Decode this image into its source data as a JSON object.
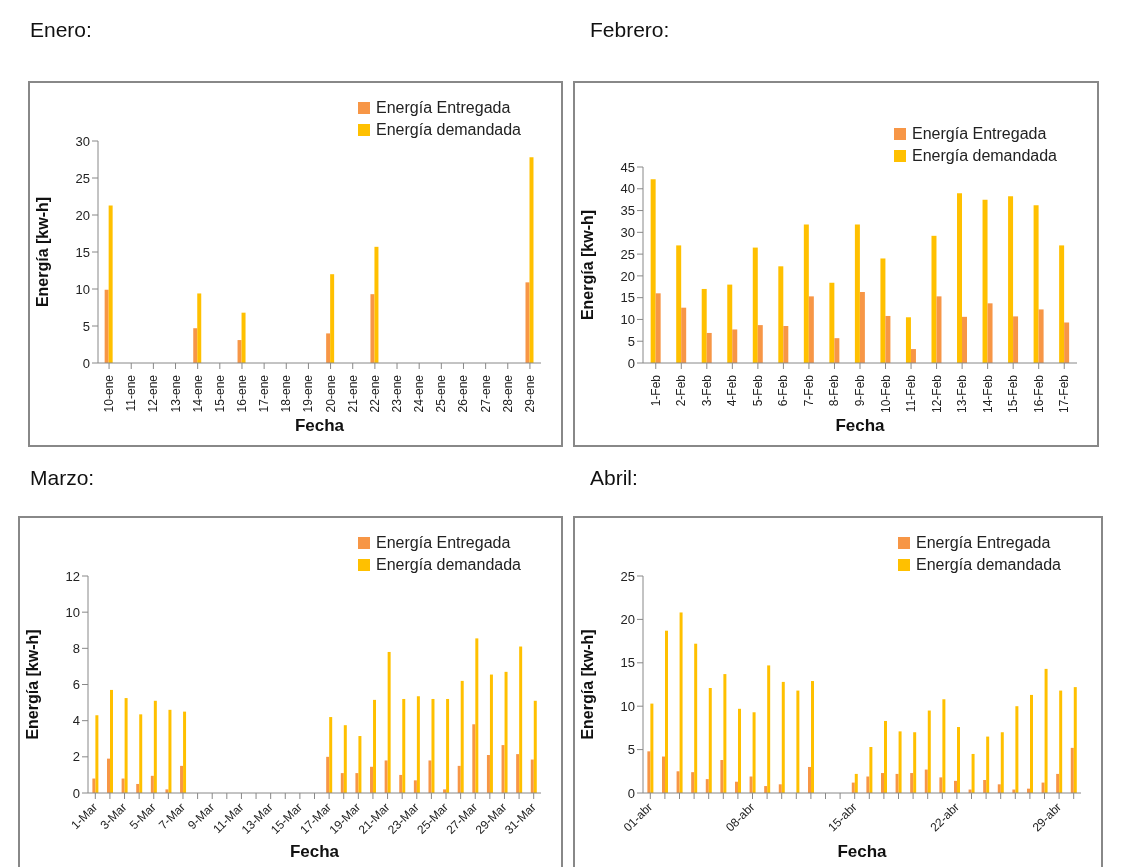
{
  "chart_data": [
    {
      "type": "bar",
      "title": "Enero:",
      "xlabel": "Fecha",
      "ylabel": "Energía [kw-h]",
      "legend": "top right",
      "categories": [
        "10-ene",
        "11-ene",
        "12-ene",
        "13-ene",
        "14-ene",
        "15-ene",
        "16-ene",
        "17-ene",
        "18-ene",
        "19-ene",
        "20-ene",
        "21-ene",
        "22-ene",
        "23-ene",
        "24-ene",
        "25-ene",
        "26-ene",
        "27-ene",
        "28-ene",
        "29-ene"
      ],
      "series": [
        {
          "name": "Energía Entregada",
          "color": "#f79646",
          "values": [
            9.9,
            null,
            null,
            null,
            4.7,
            null,
            3.1,
            null,
            null,
            null,
            4.0,
            null,
            9.3,
            null,
            null,
            null,
            null,
            null,
            null,
            10.9
          ]
        },
        {
          "name": "Energía demandada",
          "color": "#ffc000",
          "values": [
            21.3,
            null,
            null,
            null,
            9.4,
            null,
            6.8,
            null,
            null,
            null,
            12.0,
            null,
            15.7,
            null,
            null,
            null,
            null,
            null,
            null,
            27.8
          ]
        }
      ],
      "ylim": [
        0,
        30
      ],
      "yticks": [
        0,
        5,
        10,
        15,
        20,
        25,
        30
      ]
    },
    {
      "type": "bar",
      "title": "Febrero:",
      "xlabel": "Fecha",
      "ylabel": "Energía [kw-h]",
      "legend": "top right",
      "categories": [
        "1-Feb",
        "2-Feb",
        "3-Feb",
        "4-Feb",
        "5-Feb",
        "6-Feb",
        "7-Feb",
        "8-Feb",
        "9-Feb",
        "10-Feb",
        "11-Feb",
        "12-Feb",
        "13-Feb",
        "14-Feb",
        "15-Feb",
        "16-Feb",
        "17-Feb"
      ],
      "series": [
        {
          "name": "Energía demandada",
          "color": "#ffc000",
          "values": [
            42.2,
            27.0,
            17.0,
            18.0,
            26.5,
            22.2,
            31.8,
            18.4,
            31.8,
            24.0,
            10.5,
            29.2,
            39.0,
            37.5,
            38.3,
            36.2,
            27.0
          ]
        },
        {
          "name": "Energía Entregada",
          "color": "#f79646",
          "values": [
            16.0,
            12.7,
            6.9,
            7.7,
            8.7,
            8.5,
            15.3,
            5.7,
            16.3,
            10.8,
            3.2,
            15.3,
            10.6,
            13.7,
            10.7,
            12.3,
            9.3
          ]
        }
      ],
      "ylim": [
        0,
        45
      ],
      "yticks": [
        0,
        5,
        10,
        15,
        20,
        25,
        30,
        35,
        40,
        45
      ]
    },
    {
      "type": "bar",
      "title": "Marzo:",
      "xlabel": "Fecha",
      "ylabel": "Energía [kw-h]",
      "legend": "top right",
      "categories": [
        "1-Mar",
        null,
        "3-Mar",
        null,
        "5-Mar",
        null,
        "7-Mar",
        null,
        "9-Mar",
        null,
        "11-Mar",
        null,
        "13-Mar",
        null,
        "15-Mar",
        null,
        "17-Mar",
        null,
        "19-Mar",
        null,
        "21-Mar",
        null,
        "23-Mar",
        null,
        "25-Mar",
        null,
        "27-Mar",
        null,
        "29-Mar",
        null,
        "31-Mar"
      ],
      "series": [
        {
          "name": "Energía Entregada",
          "color": "#f79646",
          "values": [
            0.8,
            1.9,
            0.8,
            0.5,
            0.95,
            0.2,
            1.5,
            null,
            null,
            null,
            null,
            null,
            null,
            null,
            null,
            null,
            2.0,
            1.1,
            1.1,
            1.45,
            1.8,
            1.0,
            0.7,
            1.8,
            0.2,
            1.5,
            3.8,
            2.1,
            2.65,
            2.15,
            1.85
          ]
        },
        {
          "name": "Energía demandada",
          "color": "#ffc000",
          "values": [
            4.3,
            5.7,
            5.25,
            4.35,
            5.1,
            4.6,
            4.5,
            null,
            null,
            null,
            null,
            null,
            null,
            null,
            null,
            null,
            4.2,
            3.75,
            3.15,
            5.15,
            7.8,
            5.2,
            5.35,
            5.2,
            5.2,
            6.2,
            8.55,
            6.55,
            6.7,
            8.1,
            5.1
          ]
        }
      ],
      "ylim": [
        0,
        12
      ],
      "yticks": [
        0,
        2,
        4,
        6,
        8,
        10,
        12
      ]
    },
    {
      "type": "bar",
      "title": "Abril:",
      "xlabel": "Fecha",
      "ylabel": "Energía [kw-h]",
      "legend": "top right",
      "categories": [
        "01-abr",
        null,
        null,
        null,
        null,
        null,
        null,
        "08-abr",
        null,
        null,
        null,
        null,
        null,
        null,
        "15-abr",
        null,
        null,
        null,
        null,
        null,
        null,
        "22-abr",
        null,
        null,
        null,
        null,
        null,
        null,
        "29-abr",
        null
      ],
      "series": [
        {
          "name": "Energía Entregada",
          "color": "#f79646",
          "values": [
            4.8,
            4.2,
            2.5,
            2.4,
            1.6,
            3.8,
            1.3,
            1.9,
            0.8,
            1.0,
            null,
            3.0,
            null,
            null,
            1.2,
            1.9,
            2.3,
            2.2,
            2.3,
            2.7,
            1.8,
            1.4,
            0.4,
            1.5,
            1.0,
            0.4,
            0.5,
            1.2,
            2.2,
            5.2
          ]
        },
        {
          "name": "Energía demandada",
          "color": "#ffc000",
          "values": [
            10.3,
            18.7,
            20.8,
            17.2,
            12.1,
            13.7,
            9.7,
            9.3,
            14.7,
            12.8,
            11.8,
            12.9,
            null,
            null,
            2.2,
            5.3,
            8.3,
            7.1,
            7.0,
            9.5,
            10.8,
            7.6,
            4.5,
            6.5,
            7.0,
            10.0,
            11.3,
            14.3,
            11.8,
            12.2
          ]
        }
      ],
      "ylim": [
        0,
        25
      ],
      "yticks": [
        0,
        5,
        10,
        15,
        20,
        25
      ]
    }
  ]
}
